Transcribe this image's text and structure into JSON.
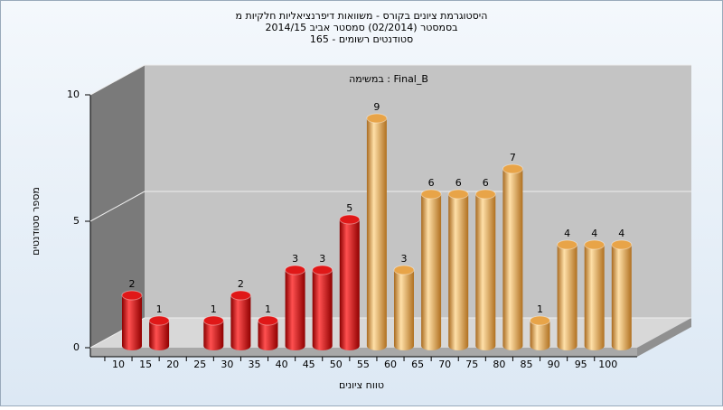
{
  "chart_data": {
    "type": "bar",
    "title": [
      "היסטוגרמת ציונים בקורס - משוואות דיפרנציאליות חלקיות מ",
      "בסמסטר (02/2014)  סמסטר אביב 2014/15",
      "סטודנטים רשומים - 165"
    ],
    "annotation": "במשימה : Final_B",
    "x_label": "טווח ציונים",
    "y_label": "מספר סטודנטים",
    "categories": [
      "10",
      "15",
      "20",
      "25",
      "30",
      "35",
      "40",
      "45",
      "50",
      "55",
      "60",
      "65",
      "70",
      "75",
      "80",
      "85",
      "90",
      "95",
      "100"
    ],
    "series": [
      {
        "color": "#e01818",
        "values": [
          2,
          1,
          null,
          1,
          2,
          1,
          3,
          3,
          5,
          null,
          null,
          null,
          null,
          null,
          null,
          null,
          null,
          null,
          null
        ]
      },
      {
        "color": "#e8a448",
        "values": [
          null,
          null,
          null,
          null,
          null,
          null,
          null,
          null,
          null,
          9,
          3,
          6,
          6,
          6,
          7,
          1,
          4,
          4,
          4
        ]
      }
    ],
    "ylim": [
      0,
      10
    ],
    "yticks": [
      0,
      5,
      10
    ],
    "grid": true
  }
}
